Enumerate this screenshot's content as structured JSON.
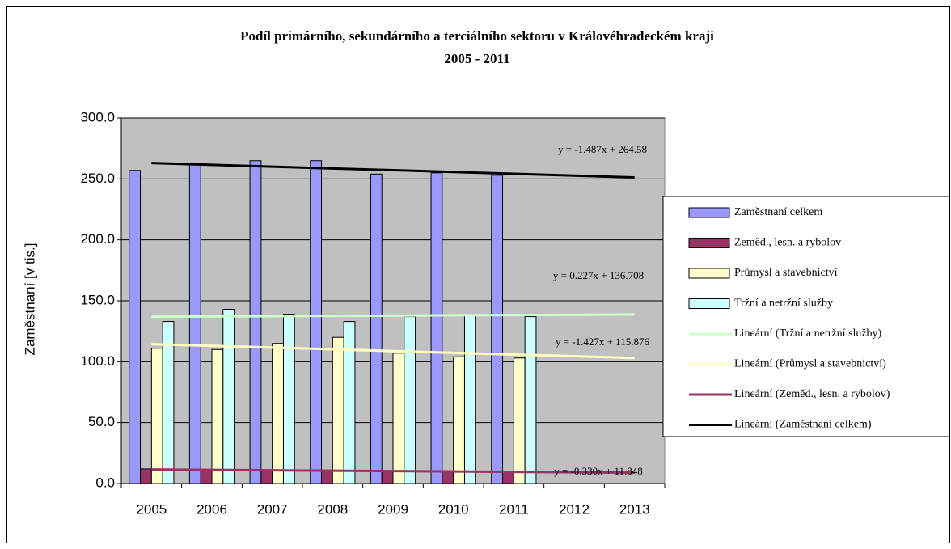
{
  "chart_data": {
    "type": "bar",
    "title": "Podíl primárního, sekundárního a terciálního sektoru v Královéhradeckém kraji",
    "subtitle": "2005 - 2011",
    "y_label": "Zaměstnaní [v tis.]",
    "categories": [
      "2005",
      "2006",
      "2007",
      "2008",
      "2009",
      "2010",
      "2011",
      "2012",
      "2013"
    ],
    "ylim": [
      0,
      300
    ],
    "yticks": [
      {
        "value": 0,
        "label": "0.0"
      },
      {
        "value": 50,
        "label": "50.0"
      },
      {
        "value": 100,
        "label": "100.0"
      },
      {
        "value": 150,
        "label": "150.0"
      },
      {
        "value": 200,
        "label": "200.0"
      },
      {
        "value": 250,
        "label": "250.0"
      },
      {
        "value": 300,
        "label": "300.0"
      }
    ],
    "grid": true,
    "legend": "right",
    "plot_background": "#c0c0c0",
    "series": [
      {
        "name": "Zaměstnaní celkem",
        "type": "bar",
        "color": "#9999ff",
        "values": [
          257,
          262,
          265,
          265,
          254,
          255,
          253,
          null,
          null
        ]
      },
      {
        "name": "Zeměd., lesn. a rybolov",
        "type": "bar",
        "color": "#993366",
        "values": [
          12,
          11,
          11,
          11,
          10,
          10,
          10,
          null,
          null
        ]
      },
      {
        "name": "Průmysl a stavebnictví",
        "type": "bar",
        "color": "#ffffcc",
        "values": [
          111,
          110,
          115,
          120,
          107,
          104,
          103,
          null,
          null
        ]
      },
      {
        "name": "Tržní a netržní služby",
        "type": "bar",
        "color": "#ccffff",
        "values": [
          133,
          143,
          139,
          133,
          137,
          138,
          137,
          null,
          null
        ]
      },
      {
        "name": "Lineární (Tržní a netržní služby)",
        "type": "line",
        "color": "#ccffcc",
        "equation": "y = 0.227x + 136.708",
        "values": [
          136.9,
          137.2,
          137.4,
          137.6,
          137.8,
          138.1,
          138.3,
          138.5,
          138.8
        ]
      },
      {
        "name": "Lineární (Průmysl a stavebnictví)",
        "type": "line",
        "color": "#ffffc0",
        "equation": "y = -1.427x + 115.876",
        "values": [
          114.4,
          113.0,
          111.6,
          110.2,
          108.7,
          107.3,
          105.9,
          104.5,
          103.0
        ]
      },
      {
        "name": "Lineární (Zeměd., lesn. a rybolov)",
        "type": "line",
        "color": "#993366",
        "equation": "y = -0.330x + 11.848",
        "values": [
          11.5,
          11.2,
          10.9,
          10.5,
          10.2,
          9.9,
          9.5,
          9.2,
          8.9
        ]
      },
      {
        "name": "Lineární (Zaměstnaní celkem)",
        "type": "line",
        "color": "#000000",
        "equation": "y = -1.487x + 264.58",
        "values": [
          263.1,
          261.6,
          260.1,
          258.6,
          257.2,
          255.7,
          254.2,
          252.7,
          251.2
        ]
      }
    ]
  }
}
